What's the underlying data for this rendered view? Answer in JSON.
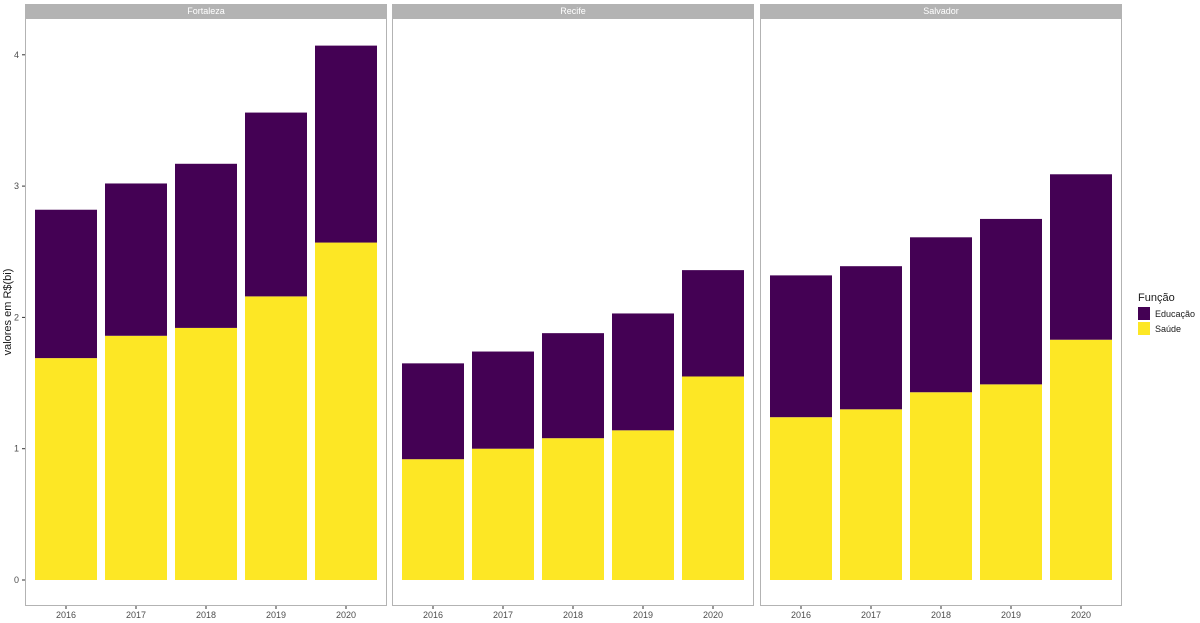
{
  "chart_data": {
    "type": "bar",
    "stacked": true,
    "facet": "panels",
    "ylabel": "valores em R$(bi)",
    "xlabel": "",
    "ylim": [
      0,
      4.2
    ],
    "y_ticks": [
      0,
      1,
      2,
      3,
      4
    ],
    "legend": {
      "title": "Função",
      "position": "right",
      "entries": [
        {
          "name": "Educação",
          "color": "#440154"
        },
        {
          "name": "Saúde",
          "color": "#FDE725"
        }
      ]
    },
    "categories": [
      "2016",
      "2017",
      "2018",
      "2019",
      "2020"
    ],
    "panels": [
      {
        "title": "Fortaleza",
        "series": [
          {
            "name": "Saúde",
            "color": "#FDE725",
            "values": [
              1.69,
              1.86,
              1.92,
              2.16,
              2.57
            ]
          },
          {
            "name": "Educação",
            "color": "#440154",
            "values": [
              1.13,
              1.16,
              1.25,
              1.4,
              1.5
            ]
          }
        ]
      },
      {
        "title": "Recife",
        "series": [
          {
            "name": "Saúde",
            "color": "#FDE725",
            "values": [
              0.92,
              1.0,
              1.08,
              1.14,
              1.55
            ]
          },
          {
            "name": "Educação",
            "color": "#440154",
            "values": [
              0.73,
              0.74,
              0.8,
              0.89,
              0.81
            ]
          }
        ]
      },
      {
        "title": "Salvador",
        "series": [
          {
            "name": "Saúde",
            "color": "#FDE725",
            "values": [
              1.24,
              1.3,
              1.43,
              1.49,
              1.83
            ]
          },
          {
            "name": "Educação",
            "color": "#440154",
            "values": [
              1.08,
              1.09,
              1.18,
              1.26,
              1.26
            ]
          }
        ]
      }
    ]
  }
}
